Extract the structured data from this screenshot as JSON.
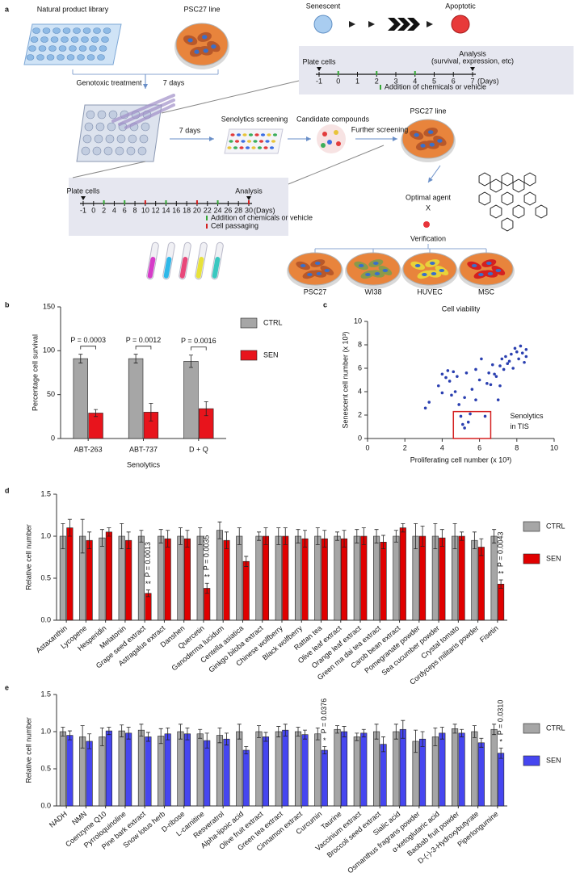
{
  "diagram": {
    "panel": "a",
    "library": "Natural product library",
    "line1": "PSC27 line",
    "genotoxic": "Genotoxic treatment",
    "days1": "7 days",
    "senescent": "Senescent",
    "apoptotic": "Apoptotic",
    "timeline1": {
      "start": "Plate cells",
      "end": "Analysis",
      "end_note": "(survival, expression, etc)",
      "ticks": [
        "-1",
        "0",
        "1",
        "2",
        "3",
        "4",
        "5",
        "6",
        "7"
      ],
      "unit": "(Days)",
      "legend": [
        "Addition of chemicals or vehicle"
      ]
    },
    "days2": "7 days",
    "screening": "Senolytics screening",
    "candidates": "Candidate compounds",
    "further": "Further screening",
    "line2": "PSC27 line",
    "optimal": "Optimal agent",
    "agent": "X",
    "verification": "Verification",
    "timeline2": {
      "start": "Plate cells",
      "end": "Analysis",
      "ticks": [
        "-1",
        "0",
        "2",
        "4",
        "6",
        "8",
        "10",
        "12",
        "14",
        "16",
        "18",
        "20",
        "22",
        "24",
        "26",
        "28",
        "30"
      ],
      "unit": "(Days)",
      "legend": [
        "Addition of chemicals or vehicle",
        "Cell passaging"
      ]
    },
    "cells": [
      "PSC27",
      "WI38",
      "HUVEC",
      "MSC"
    ]
  },
  "chart_data": [
    {
      "type": "bar",
      "panel": "b",
      "categories": [
        "ABT-263",
        "ABT-737",
        "D + Q"
      ],
      "xlabel": "Senolytics",
      "ylabel": "Percentage cell survival",
      "ylim": [
        0,
        150
      ],
      "yticks": [
        0,
        50,
        100,
        150
      ],
      "legend": "right",
      "series": [
        {
          "name": "CTRL",
          "color": "#a6a6a6",
          "values": [
            91,
            91,
            88
          ],
          "errors": [
            5,
            5,
            7
          ]
        },
        {
          "name": "SEN",
          "color": "#e8141c",
          "values": [
            29,
            30,
            34
          ],
          "errors": [
            4,
            10,
            8
          ]
        }
      ],
      "p_values": [
        "P = 0.0003",
        "P = 0.0012",
        "P = 0.0016"
      ],
      "annotation_color": "#222222"
    },
    {
      "type": "scatter",
      "panel": "c",
      "title": "Cell viability",
      "xlabel": "Proliferating cell number (x 10³)",
      "ylabel": "Senescent cell number (x 10³)",
      "xlim": [
        0,
        10
      ],
      "xticks": [
        0,
        2,
        4,
        6,
        8,
        10
      ],
      "ylim": [
        0,
        10
      ],
      "yticks": [
        0,
        2,
        4,
        6,
        8,
        10
      ],
      "color": "#2a3fb0",
      "x": [
        3.1,
        3.3,
        3.8,
        4.0,
        4.0,
        4.2,
        4.3,
        4.4,
        4.5,
        4.6,
        4.7,
        4.8,
        4.9,
        5.0,
        5.1,
        5.2,
        5.2,
        5.3,
        5.4,
        5.5,
        5.6,
        5.8,
        5.8,
        6.0,
        6.1,
        6.3,
        6.4,
        6.5,
        6.6,
        6.7,
        6.8,
        6.9,
        7.0,
        7.1,
        7.1,
        7.2,
        7.3,
        7.4,
        7.5,
        7.6,
        7.7,
        7.8,
        7.9,
        8.0,
        8.1,
        8.2,
        8.3,
        8.4,
        8.5,
        8.5
      ],
      "values": [
        2.6,
        3.1,
        4.5,
        5.5,
        3.9,
        5.2,
        5.8,
        4.9,
        3.7,
        5.7,
        4.0,
        5.3,
        2.9,
        1.9,
        1.2,
        0.9,
        3.5,
        5.6,
        1.4,
        2.1,
        4.2,
        3.3,
        5.9,
        5.0,
        6.8,
        1.9,
        4.7,
        5.6,
        4.6,
        6.3,
        5.5,
        5.3,
        3.3,
        4.5,
        6.2,
        6.8,
        5.9,
        7.0,
        6.4,
        6.6,
        7.2,
        6.0,
        7.7,
        7.4,
        6.8,
        7.9,
        7.3,
        6.5,
        7.0,
        7.6
      ],
      "highlight": {
        "x": [
          4.6,
          6.6
        ],
        "y": [
          0,
          2.3
        ],
        "label": [
          "Senolytics",
          "in TIS"
        ],
        "color": "#d42020"
      }
    },
    {
      "type": "bar",
      "panel": "d",
      "ylabel": "Relative cell number",
      "categories": [
        "Astaxanthin",
        "Lycopene",
        "Hesperidin",
        "Melatonin",
        "Grape seed extract",
        "Astragalus extract",
        "Danshen",
        "Quercetin",
        "Ganoderma lucidum",
        "Centella asiatica",
        "Ginkgo biloba extract",
        "Chinese wolfberry",
        "Black wolfberry",
        "Rattan tea",
        "Olive leaf extract",
        "Orange leaf extract",
        "Green ma dai tea extract",
        "Carob bean extract",
        "Pomegranate powder",
        "Sea cucumber powder",
        "Crystal tomato",
        "Cordyceps militaris powder",
        "Fisetin"
      ],
      "ylim": [
        0,
        1.5
      ],
      "yticks": [
        {
          "value": 0,
          "label": "0.0"
        },
        0.5,
        {
          "value": 1,
          "label": "1.0"
        },
        1.5
      ],
      "legend": "right",
      "series": [
        {
          "name": "CTRL",
          "color": "#a6a6a6",
          "values": [
            1.0,
            1.0,
            0.98,
            1.0,
            1.0,
            1.0,
            1.0,
            1.0,
            1.07,
            1.0,
            1.0,
            1.0,
            1.0,
            1.0,
            1.0,
            1.0,
            1.0,
            1.0,
            1.0,
            1.0,
            1.0,
            0.95,
            1.0
          ],
          "errors": [
            0.15,
            0.2,
            0.1,
            0.15,
            0.07,
            0.08,
            0.1,
            0.1,
            0.1,
            0.1,
            0.05,
            0.1,
            0.08,
            0.1,
            0.05,
            0.08,
            0.08,
            0.07,
            0.15,
            0.15,
            0.15,
            0.1,
            0.08
          ]
        },
        {
          "name": "SEN",
          "color": "#e00000",
          "values": [
            1.1,
            0.95,
            1.05,
            0.95,
            0.32,
            0.97,
            0.97,
            0.38,
            0.95,
            0.7,
            1.0,
            1.0,
            0.97,
            0.97,
            0.97,
            1.0,
            0.93,
            1.1,
            1.0,
            0.98,
            1.0,
            0.87,
            0.43
          ],
          "errors": [
            0.1,
            0.1,
            0.05,
            0.1,
            0.04,
            0.1,
            0.1,
            0.06,
            0.1,
            0.06,
            0.1,
            0.1,
            0.1,
            0.1,
            0.1,
            0.1,
            0.08,
            0.05,
            0.12,
            0.1,
            0.05,
            0.1,
            0.05
          ]
        }
      ],
      "p_values": [
        null,
        null,
        null,
        null,
        "P = 0.0013",
        null,
        null,
        "P = 0.0035",
        null,
        null,
        null,
        null,
        null,
        null,
        null,
        null,
        null,
        null,
        null,
        null,
        null,
        null,
        "P = 0.0043"
      ],
      "significance": [
        null,
        null,
        null,
        null,
        "**",
        null,
        null,
        "**",
        null,
        null,
        null,
        null,
        null,
        null,
        null,
        null,
        null,
        null,
        null,
        null,
        null,
        null,
        "**"
      ],
      "annotation_color": "#d9302c"
    },
    {
      "type": "bar",
      "panel": "e",
      "ylabel": "Relative cell number",
      "categories": [
        "NADH",
        "NMN",
        "Coenzyme Q10",
        "Pyrroloquinoline",
        "Pine bark extract",
        "Snow lotus herb",
        "D-ribose",
        "L-carnitine",
        "Resveratrol",
        "Alpha-lipoic acid",
        "Olive fruit extract",
        "Green tea extract",
        "Cinnamon extract",
        "Curcumin",
        "Taurine",
        "Vaccinium extract",
        "Broccoli seed extract",
        "Sialic acid",
        "Osmanthus fragrans powder",
        "α-ketoglutaric acid",
        "Baobab fruit powder",
        "D-(-)-3-Hydroxybutyrate",
        "Piperlongumine"
      ],
      "ylim": [
        0,
        1.5
      ],
      "yticks": [
        {
          "value": 0,
          "label": "0.0"
        },
        0.5,
        {
          "value": 1,
          "label": "1.0"
        },
        1.5
      ],
      "legend": "right",
      "series": [
        {
          "name": "CTRL",
          "color": "#a6a6a6",
          "values": [
            1.0,
            0.93,
            0.93,
            1.01,
            1.02,
            0.94,
            1.0,
            0.97,
            0.95,
            1.0,
            1.0,
            1.0,
            1.0,
            0.97,
            1.03,
            0.93,
            1.0,
            1.0,
            0.87,
            0.93,
            1.04,
            1.0,
            1.03
          ],
          "errors": [
            0.06,
            0.15,
            0.12,
            0.08,
            0.08,
            0.1,
            0.1,
            0.06,
            0.1,
            0.1,
            0.08,
            0.07,
            0.06,
            0.08,
            0.05,
            0.05,
            0.1,
            0.1,
            0.15,
            0.12,
            0.06,
            0.08,
            0.07
          ]
        },
        {
          "name": "SEN",
          "color": "#4646f0",
          "values": [
            0.95,
            0.87,
            1.01,
            0.98,
            0.93,
            0.97,
            0.97,
            0.88,
            0.9,
            0.75,
            0.93,
            1.02,
            0.96,
            0.75,
            1.0,
            0.98,
            0.83,
            1.03,
            0.9,
            0.98,
            0.98,
            0.85,
            0.71
          ],
          "errors": [
            0.06,
            0.1,
            0.05,
            0.08,
            0.06,
            0.08,
            0.08,
            0.1,
            0.08,
            0.05,
            0.06,
            0.08,
            0.06,
            0.05,
            0.07,
            0.05,
            0.1,
            0.12,
            0.1,
            0.08,
            0.05,
            0.06,
            0.07
          ]
        }
      ],
      "p_values": [
        null,
        null,
        null,
        null,
        null,
        null,
        null,
        null,
        null,
        null,
        null,
        null,
        null,
        "P = 0.0376",
        null,
        null,
        null,
        null,
        null,
        null,
        null,
        null,
        "P = 0.0310"
      ],
      "significance": [
        null,
        null,
        null,
        null,
        null,
        null,
        null,
        null,
        null,
        null,
        null,
        null,
        null,
        "*",
        null,
        null,
        null,
        null,
        null,
        null,
        null,
        null,
        "*"
      ],
      "annotation_color": "#6b6bd8"
    }
  ]
}
